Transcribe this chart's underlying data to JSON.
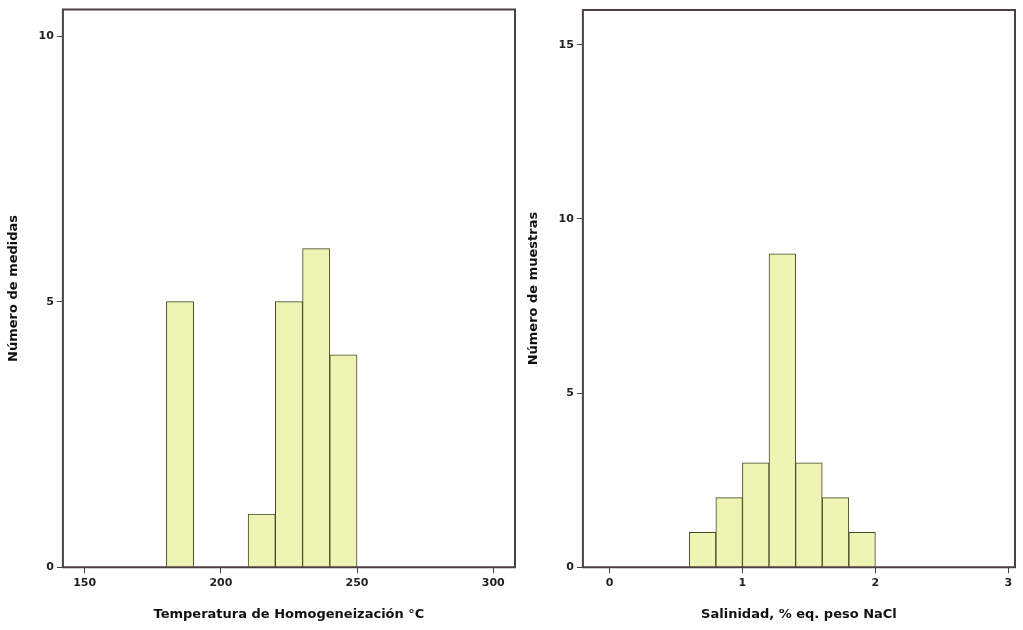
{
  "chart_data": [
    {
      "type": "histogram",
      "bins": [
        180,
        190,
        200,
        210,
        220,
        230,
        240,
        250
      ],
      "values": [
        5,
        0,
        0,
        1,
        5,
        6,
        4
      ],
      "color": "#eef5b4",
      "xlim": [
        142,
        308
      ],
      "xticks": [
        150,
        200,
        250,
        300
      ],
      "ylim": [
        0,
        10.5
      ],
      "yticks": [
        0,
        5,
        10
      ],
      "xlabel": "Temperatura de Homogeneización °C",
      "ylabel": "Número de medidas"
    },
    {
      "type": "histogram",
      "bins": [
        0.6,
        0.8,
        1.0,
        1.2,
        1.4,
        1.6,
        1.8,
        2.0
      ],
      "values": [
        1,
        2,
        3,
        9,
        3,
        2,
        1
      ],
      "color": "#eef5b4",
      "xlim": [
        -0.2,
        3.05
      ],
      "xticks": [
        0,
        1,
        2,
        3
      ],
      "ylim": [
        0,
        16
      ],
      "yticks": [
        0,
        5,
        10,
        15
      ],
      "xlabel": "Salinidad, % eq. peso NaCl",
      "ylabel": "Número de muestras"
    }
  ]
}
